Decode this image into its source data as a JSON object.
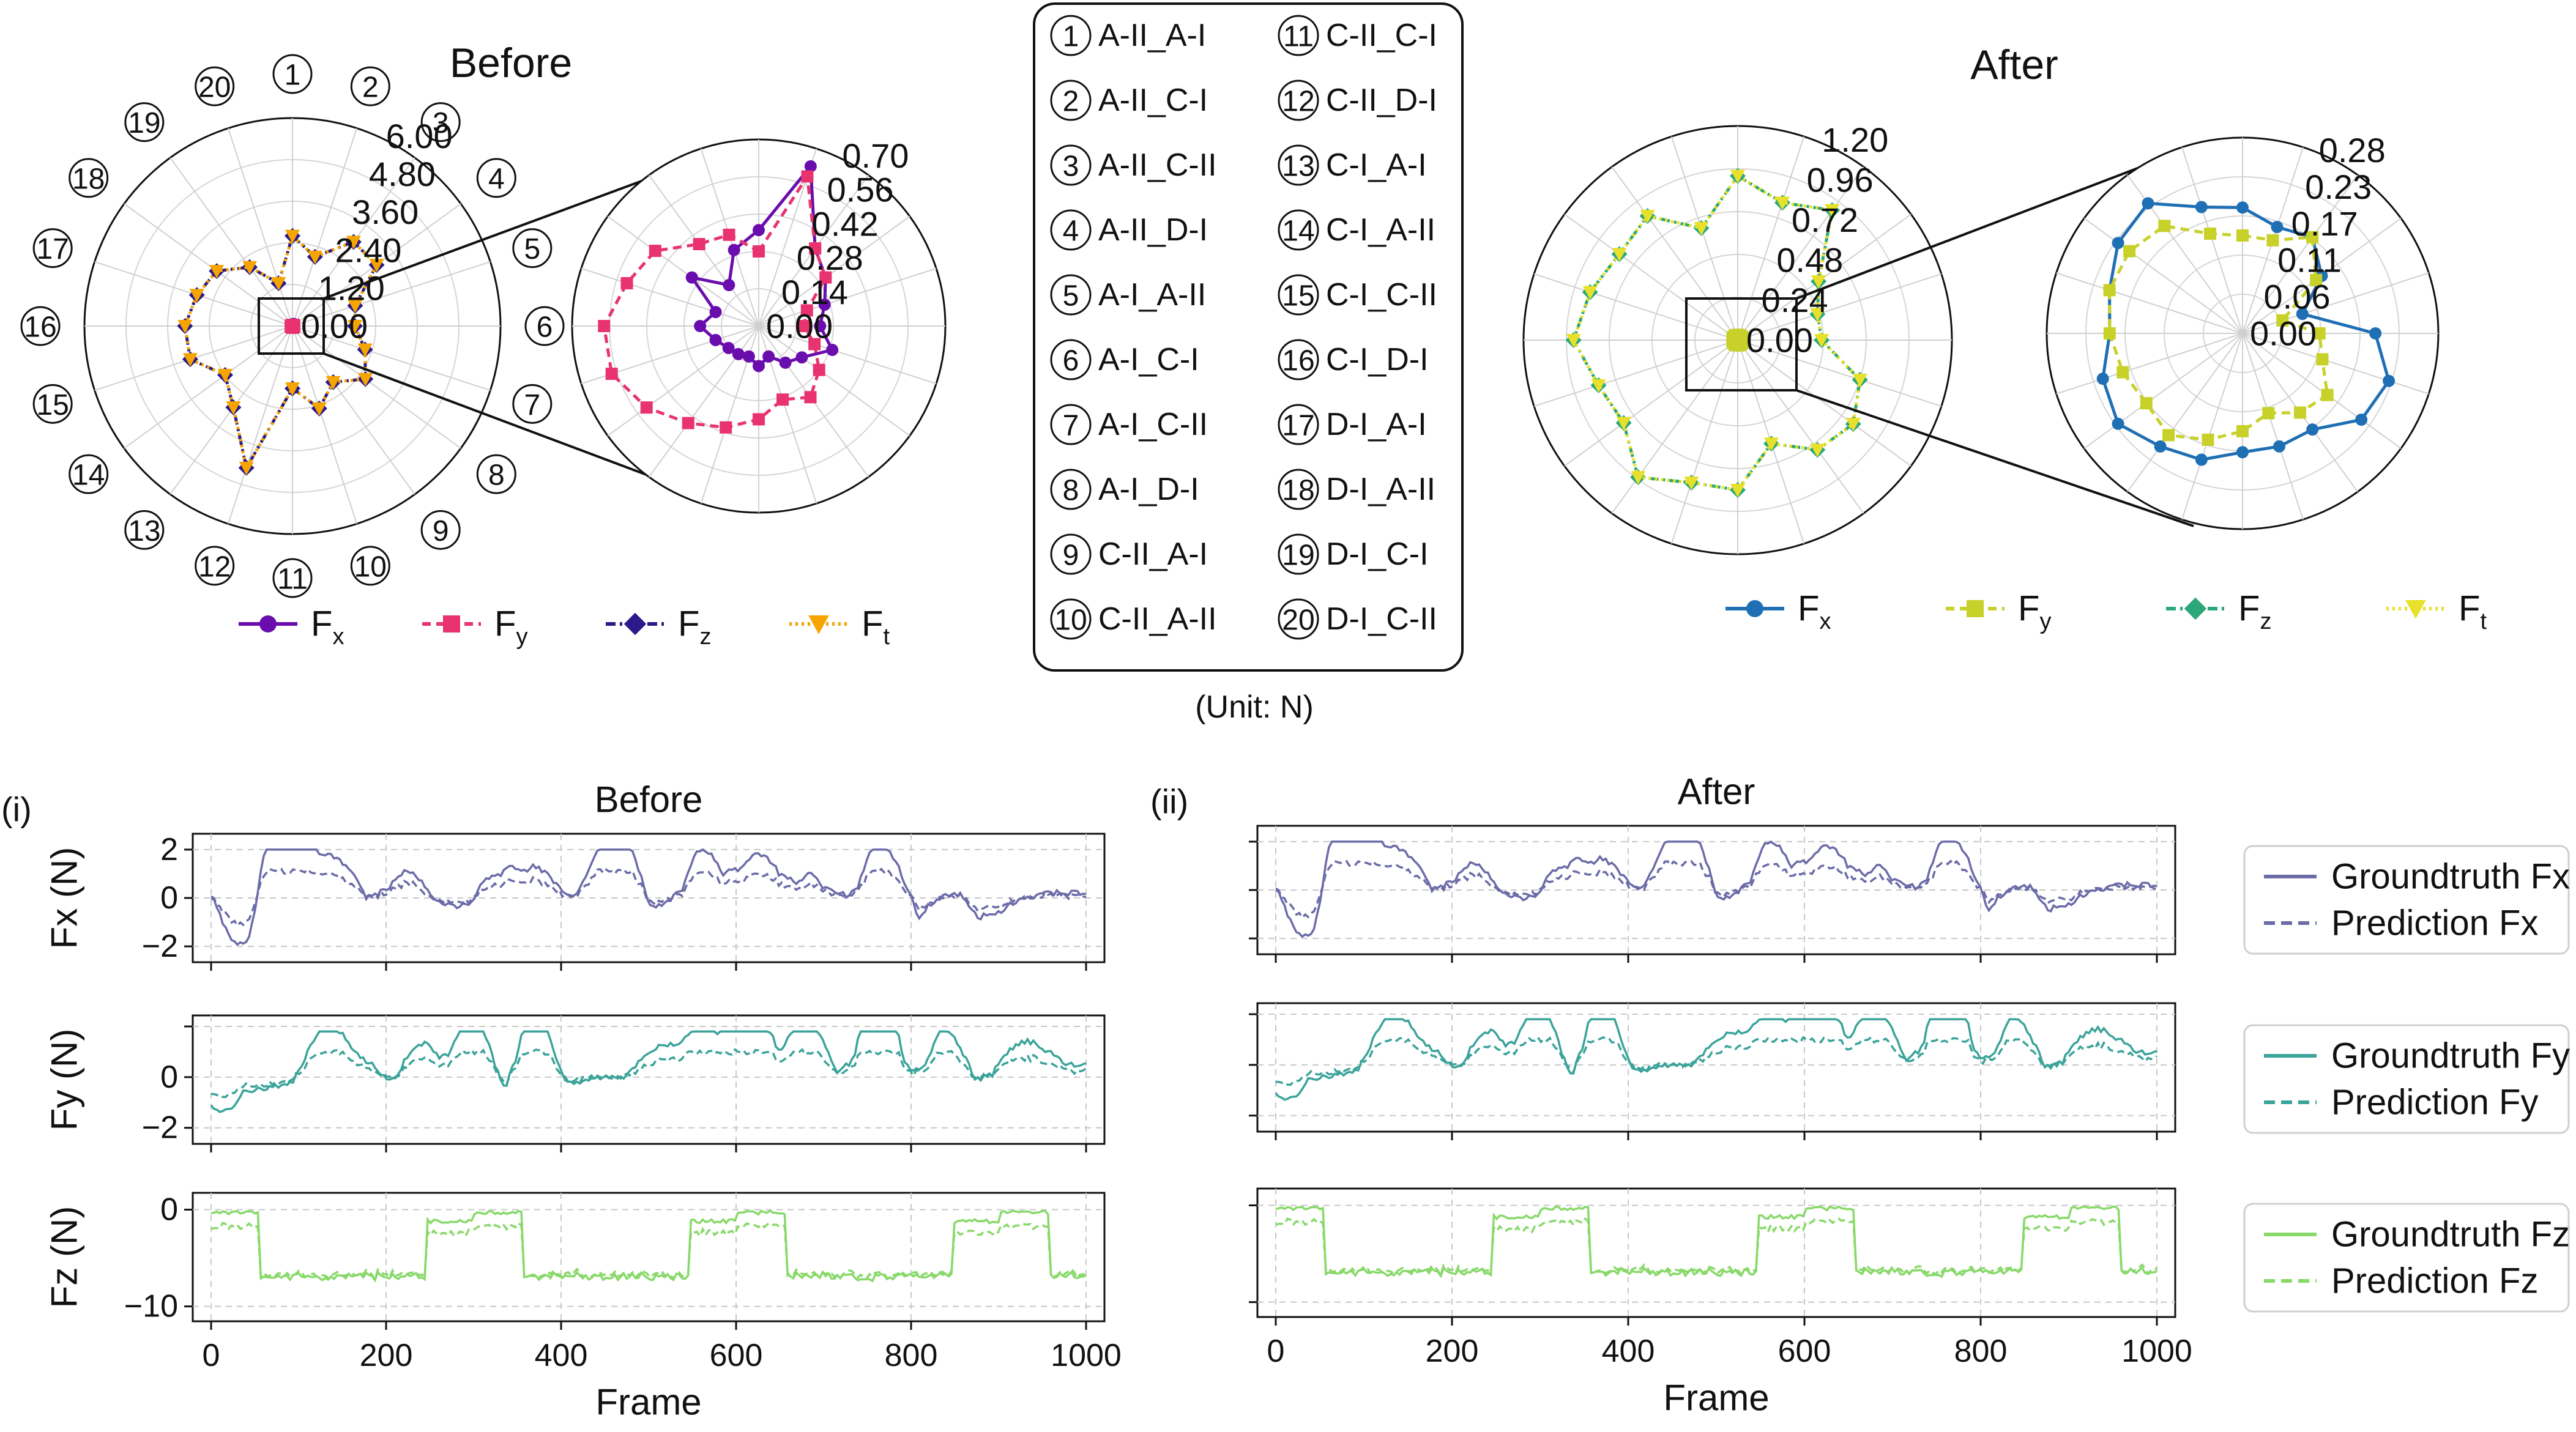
{
  "chart_data": [
    {
      "type": "radar",
      "id": "polar-before",
      "title": "Before",
      "categories": [
        "1",
        "2",
        "3",
        "4",
        "5",
        "6",
        "7",
        "8",
        "9",
        "10",
        "11",
        "12",
        "13",
        "14",
        "15",
        "16",
        "17",
        "18",
        "19",
        "20"
      ],
      "rlim": [
        0,
        6.0
      ],
      "radial_ticks": [
        "0.00",
        "1.20",
        "2.40",
        "3.60",
        "4.80",
        "6.00"
      ],
      "grid": true,
      "series": [
        {
          "name": "Fx",
          "color": "#6a0dad",
          "marker": "circle",
          "dash": "solid",
          "values": [
            0.05,
            0.06,
            0.07,
            0.04,
            0.03,
            0.03,
            0.03,
            0.05,
            0.04,
            0.05,
            0.02,
            0.03,
            0.03,
            0.03,
            0.03,
            0.03,
            0.03,
            0.03,
            0.03,
            0.02
          ]
        },
        {
          "name": "Fy",
          "color": "#e8336f",
          "marker": "square",
          "dash": "dashed",
          "values": [
            0.03,
            0.03,
            0.04,
            0.04,
            0.05,
            0.04,
            0.05,
            0.05,
            0.04,
            0.04,
            0.05,
            0.05,
            0.04,
            0.04,
            0.05,
            0.05,
            0.04,
            0.04,
            0.03,
            0.03
          ]
        },
        {
          "name": "Fz",
          "color": "#2a1a8a",
          "marker": "diamond",
          "dash": "dashdot",
          "values": [
            2.6,
            2.1,
            3.0,
            3.0,
            1.9,
            1.8,
            2.2,
            2.6,
            2.0,
            2.5,
            1.8,
            4.3,
            2.9,
            2.4,
            3.1,
            3.1,
            2.9,
            2.7,
            2.1,
            1.3
          ]
        },
        {
          "name": "Ft",
          "color": "#f5a400",
          "marker": "triangle-down",
          "dash": "dotted",
          "values": [
            2.6,
            2.1,
            3.0,
            3.0,
            1.9,
            1.8,
            2.2,
            2.6,
            2.0,
            2.5,
            1.8,
            4.3,
            2.9,
            2.4,
            3.1,
            3.1,
            2.9,
            2.7,
            2.1,
            1.3
          ]
        }
      ]
    },
    {
      "type": "radar",
      "id": "polar-before-zoom",
      "categories": [
        "1",
        "2",
        "3",
        "4",
        "5",
        "6",
        "7",
        "8",
        "9",
        "10",
        "11",
        "12",
        "13",
        "14",
        "15",
        "16",
        "17",
        "18",
        "19",
        "20"
      ],
      "rlim": [
        0,
        0.7
      ],
      "radial_ticks": [
        "0.00",
        "0.14",
        "0.28",
        "0.42",
        "0.56",
        "0.70"
      ],
      "grid": true,
      "series": [
        {
          "name": "Fx",
          "color": "#6a0dad",
          "marker": "circle",
          "dash": "solid",
          "values": [
            0.36,
            0.63,
            0.36,
            0.31,
            0.26,
            0.23,
            0.29,
            0.2,
            0.17,
            0.12,
            0.15,
            0.12,
            0.13,
            0.14,
            0.17,
            0.22,
            0.17,
            0.31,
            0.19,
            0.3
          ]
        },
        {
          "name": "Fy",
          "color": "#e8336f",
          "marker": "square",
          "dash": "dashed",
          "values": [
            0.28,
            0.59,
            0.36,
            0.31,
            0.19,
            0.17,
            0.22,
            0.28,
            0.33,
            0.29,
            0.35,
            0.4,
            0.45,
            0.52,
            0.58,
            0.58,
            0.52,
            0.48,
            0.38,
            0.36
          ]
        }
      ]
    },
    {
      "type": "radar",
      "id": "polar-after",
      "title": "After",
      "categories": [
        "1",
        "2",
        "3",
        "4",
        "5",
        "6",
        "7",
        "8",
        "9",
        "10",
        "11",
        "12",
        "13",
        "14",
        "15",
        "16",
        "17",
        "18",
        "19",
        "20"
      ],
      "rlim": [
        0,
        1.2
      ],
      "radial_ticks": [
        "0.00",
        "0.24",
        "0.48",
        "0.72",
        "0.96",
        "1.20"
      ],
      "grid": true,
      "series": [
        {
          "name": "Fx",
          "color": "#1f6fb4",
          "marker": "circle",
          "dash": "solid",
          "values": [
            0.03,
            0.03,
            0.02,
            0.03,
            0.03,
            0.03,
            0.03,
            0.03,
            0.03,
            0.03,
            0.03,
            0.03,
            0.02,
            0.03,
            0.03,
            0.03,
            0.03,
            0.03,
            0.03,
            0.03
          ]
        },
        {
          "name": "Fy",
          "color": "#c7d12a",
          "marker": "square",
          "dash": "dashed",
          "values": [
            0.03,
            0.03,
            0.03,
            0.03,
            0.03,
            0.03,
            0.03,
            0.03,
            0.03,
            0.03,
            0.03,
            0.03,
            0.03,
            0.03,
            0.03,
            0.03,
            0.03,
            0.03,
            0.03,
            0.03
          ]
        },
        {
          "name": "Fz",
          "color": "#2aa87a",
          "marker": "diamond",
          "dash": "dashdot",
          "values": [
            0.92,
            0.81,
            0.9,
            0.56,
            0.47,
            0.47,
            0.72,
            0.8,
            0.76,
            0.61,
            0.84,
            0.84,
            0.95,
            0.79,
            0.82,
            0.92,
            0.87,
            0.82,
            0.86,
            0.66
          ]
        },
        {
          "name": "Ft",
          "color": "#e8e02a",
          "marker": "triangle-down",
          "dash": "dotted",
          "values": [
            0.92,
            0.81,
            0.9,
            0.56,
            0.47,
            0.47,
            0.72,
            0.8,
            0.76,
            0.61,
            0.84,
            0.84,
            0.95,
            0.79,
            0.82,
            0.92,
            0.87,
            0.82,
            0.86,
            0.66
          ]
        }
      ]
    },
    {
      "type": "radar",
      "id": "polar-after-zoom",
      "categories": [
        "1",
        "2",
        "3",
        "4",
        "5",
        "6",
        "7",
        "8",
        "9",
        "10",
        "11",
        "12",
        "13",
        "14",
        "15",
        "16",
        "17",
        "18",
        "19",
        "20"
      ],
      "rlim": [
        0,
        0.28
      ],
      "radial_ticks": [
        "0.00",
        "0.06",
        "0.11",
        "0.17",
        "0.23",
        "0.28"
      ],
      "grid": true,
      "series": [
        {
          "name": "Fx",
          "color": "#1f6fb4",
          "marker": "circle",
          "dash": "solid",
          "values": [
            0.18,
            0.16,
            0.17,
            0.14,
            0.09,
            0.19,
            0.22,
            0.21,
            0.17,
            0.17,
            0.17,
            0.19,
            0.2,
            0.22,
            0.21,
            0.19,
            0.2,
            0.22,
            0.23,
            0.19
          ]
        },
        {
          "name": "Fy",
          "color": "#c7d12a",
          "marker": "square",
          "dash": "dashed",
          "values": [
            0.14,
            0.14,
            0.17,
            0.13,
            0.06,
            0.11,
            0.12,
            0.15,
            0.14,
            0.12,
            0.14,
            0.16,
            0.18,
            0.17,
            0.18,
            0.19,
            0.2,
            0.2,
            0.19,
            0.15
          ]
        }
      ]
    },
    {
      "type": "line",
      "id": "ts-before",
      "title": "Before",
      "panel_tag": "(i)",
      "xlabel": "Frame",
      "xlim": [
        0,
        1000
      ],
      "x_ticks": [
        "0",
        "200",
        "400",
        "600",
        "800",
        "1000"
      ],
      "grid": true,
      "panels": [
        {
          "ylabel": "Fx (N)",
          "ylim": [
            -2.2,
            2.2
          ],
          "y_ticks": [
            "−2",
            "0",
            "2"
          ],
          "color": "#6b6ba8",
          "seed": 11,
          "base": 0.0,
          "amp": 1.4,
          "drop": false
        },
        {
          "ylabel": "Fy (N)",
          "ylim": [
            -2.2,
            2.0
          ],
          "y_ticks": [
            "−2",
            "0"
          ],
          "color": "#3aa39a",
          "seed": 23,
          "base": 0.0,
          "amp": 1.4,
          "drop": false
        },
        {
          "ylabel": "Fz (N)",
          "ylim": [
            -10.4,
            0.6
          ],
          "y_ticks": [
            "−10",
            "0"
          ],
          "color": "#88d96a",
          "seed": 37,
          "base": -3.0,
          "amp": 5.0,
          "drop": true
        }
      ],
      "series_names": [
        "Groundtruth",
        "Prediction"
      ]
    },
    {
      "type": "line",
      "id": "ts-after",
      "title": "After",
      "panel_tag": "(ii)",
      "xlabel": "Frame",
      "xlim": [
        0,
        1000
      ],
      "x_ticks": [
        "0",
        "200",
        "400",
        "600",
        "800",
        "1000"
      ],
      "grid": true,
      "panels": [
        {
          "ylabel": "",
          "ylim": [
            -2.2,
            2.2
          ],
          "y_ticks": [],
          "color": "#6b6ba8",
          "seed": 11,
          "base": 0.0,
          "amp": 1.4,
          "drop": false
        },
        {
          "ylabel": "",
          "ylim": [
            -2.2,
            2.0
          ],
          "y_ticks": [],
          "color": "#3aa39a",
          "seed": 23,
          "base": 0.0,
          "amp": 1.4,
          "drop": false
        },
        {
          "ylabel": "",
          "ylim": [
            -10.4,
            0.6
          ],
          "y_ticks": [],
          "color": "#88d96a",
          "seed": 37,
          "base": -3.0,
          "amp": 5.0,
          "drop": true
        }
      ],
      "series_names": [
        "Groundtruth",
        "Prediction"
      ]
    }
  ],
  "legends": {
    "before_polar": [
      "F",
      "F",
      "F",
      "F"
    ],
    "before_polar_subs": [
      "x",
      "y",
      "z",
      "t"
    ],
    "after_polar": [
      "F",
      "F",
      "F",
      "F"
    ],
    "after_polar_subs": [
      "x",
      "y",
      "z",
      "t"
    ],
    "ts": [
      [
        "Groundtruth Fx",
        "Prediction Fx"
      ],
      [
        "Groundtruth Fy",
        "Prediction Fy"
      ],
      [
        "Groundtruth Fz",
        "Prediction Fz"
      ]
    ]
  },
  "key_box": {
    "left": [
      {
        "num": "1",
        "label": "A-II_A-I"
      },
      {
        "num": "2",
        "label": "A-II_C-I"
      },
      {
        "num": "3",
        "label": "A-II_C-II"
      },
      {
        "num": "4",
        "label": "A-II_D-I"
      },
      {
        "num": "5",
        "label": "A-I_A-II"
      },
      {
        "num": "6",
        "label": "A-I_C-I"
      },
      {
        "num": "7",
        "label": "A-I_C-II"
      },
      {
        "num": "8",
        "label": "A-I_D-I"
      },
      {
        "num": "9",
        "label": "C-II_A-I"
      },
      {
        "num": "10",
        "label": "C-II_A-II"
      }
    ],
    "right": [
      {
        "num": "11",
        "label": "C-II_C-I"
      },
      {
        "num": "12",
        "label": "C-II_D-I"
      },
      {
        "num": "13",
        "label": "C-I_A-I"
      },
      {
        "num": "14",
        "label": "C-I_A-II"
      },
      {
        "num": "15",
        "label": "C-I_C-II"
      },
      {
        "num": "16",
        "label": "C-I_D-I"
      },
      {
        "num": "17",
        "label": "D-I_A-I"
      },
      {
        "num": "18",
        "label": "D-I_A-II"
      },
      {
        "num": "19",
        "label": "D-I_C-I"
      },
      {
        "num": "20",
        "label": "D-I_C-II"
      }
    ],
    "unit": "(Unit: N)"
  }
}
